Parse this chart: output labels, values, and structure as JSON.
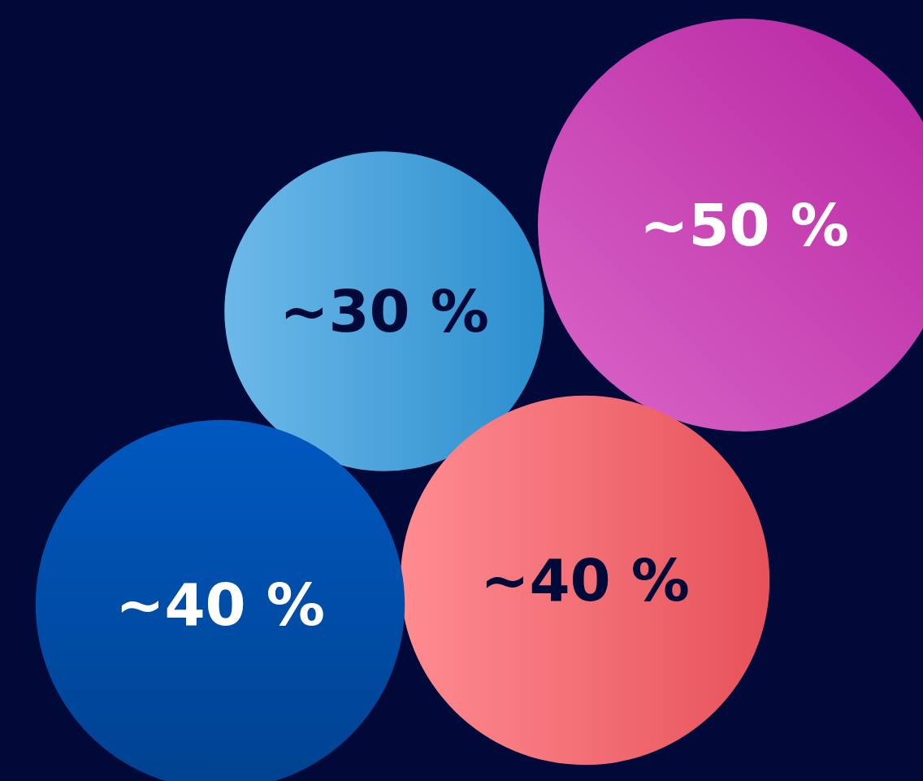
{
  "chart_data": {
    "type": "other",
    "values": [
      50,
      30,
      40,
      40
    ],
    "value_labels": [
      "~50 %",
      "~30 %",
      "~40 %",
      "~40 %"
    ],
    "colors": [
      "#c826b0",
      "#2f9be0",
      "#fd5a62",
      "#0058c0"
    ]
  }
}
